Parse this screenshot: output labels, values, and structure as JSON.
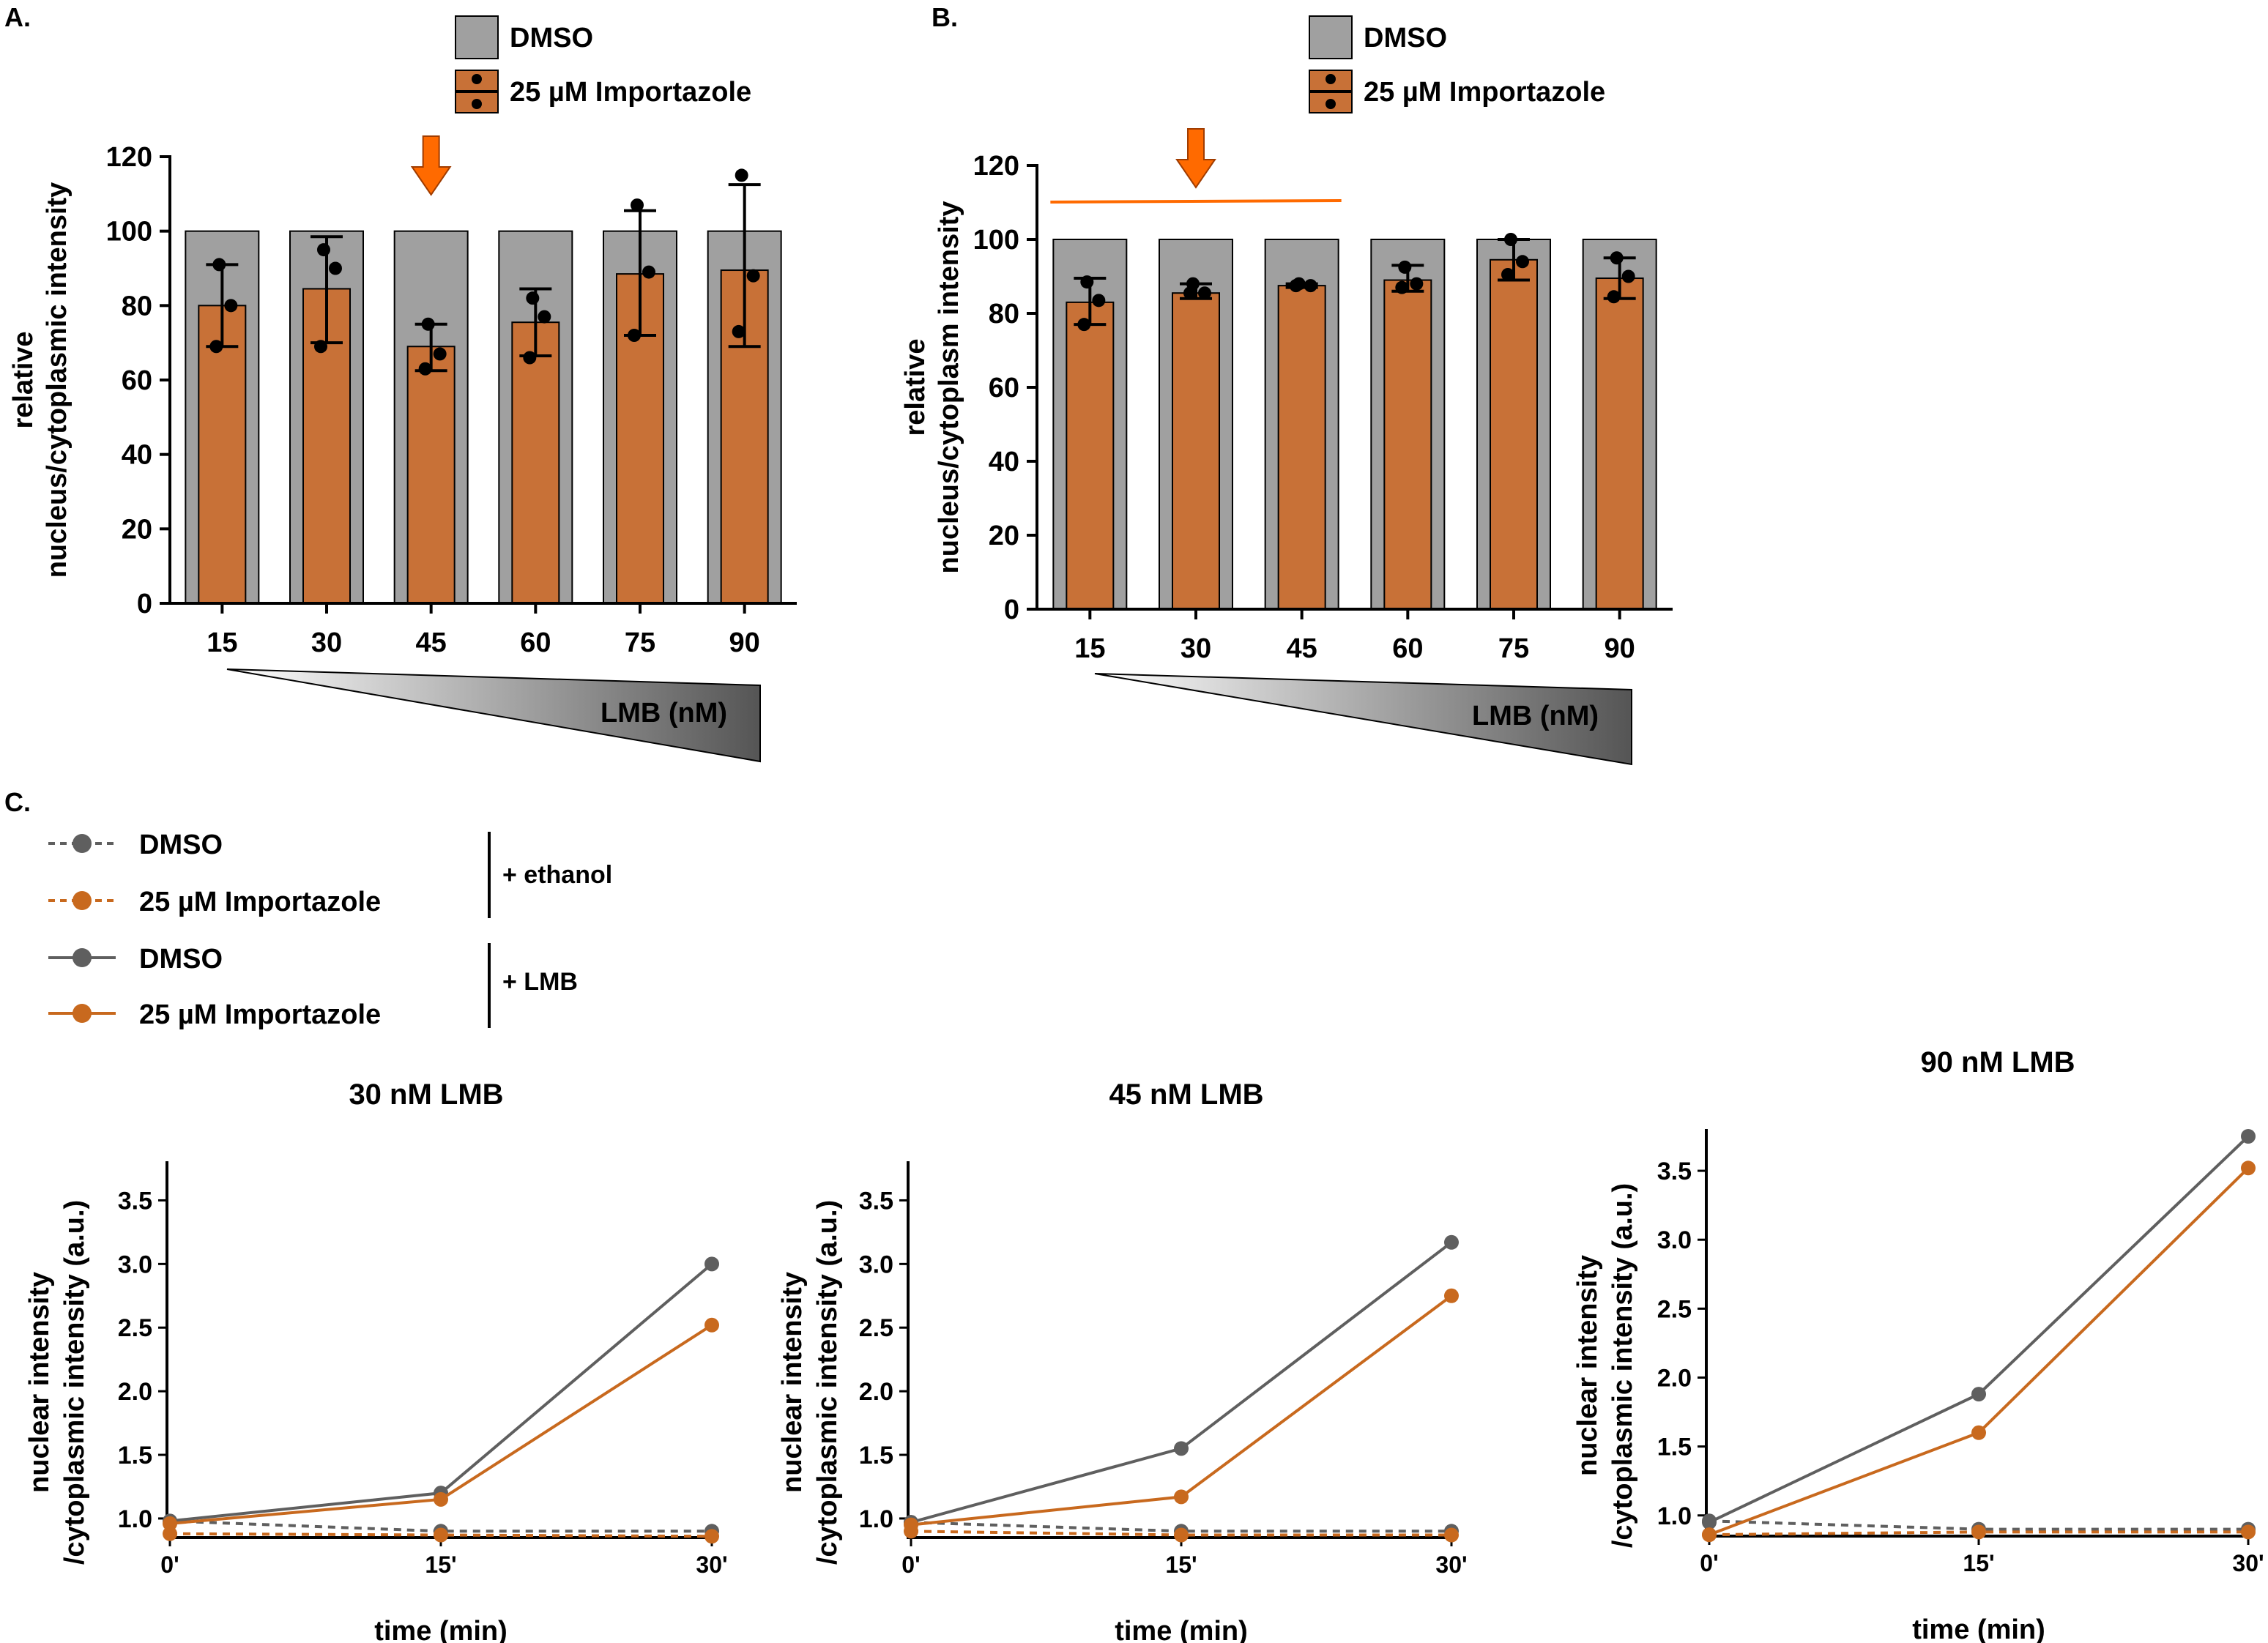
{
  "colors": {
    "dmso_bar": "#a0a0a0",
    "importazole_bar": "#c87137",
    "arrow": "#ff6a00",
    "dmso_line": "#5f5f5f",
    "importazole_line": "#c8691e"
  },
  "panels": {
    "a": {
      "label": "A."
    },
    "b": {
      "label": "B."
    },
    "c": {
      "label": "C."
    }
  },
  "bar_legend": {
    "dmso": "DMSO",
    "importazole": "25 µM Importazole"
  },
  "gradient_label": "LMB (nM)",
  "line_legend": {
    "rows": [
      "DMSO",
      "25 µM Importazole",
      "DMSO",
      "25 µM Importazole"
    ],
    "group_ethanol": "+ ethanol",
    "group_lmb": "+ LMB"
  },
  "chart_data": [
    {
      "panel": "A.",
      "type": "bar",
      "categories": [
        "15",
        "30",
        "45",
        "60",
        "75",
        "90"
      ],
      "ylabel": [
        "relative",
        "nucleus/cytoplasmic intensity"
      ],
      "ylim": [
        0,
        120
      ],
      "yticks": [
        0,
        20,
        40,
        60,
        80,
        100,
        120
      ],
      "xlabel": "LMB (nM)",
      "series": [
        {
          "name": "DMSO",
          "values": [
            100,
            100,
            100,
            100,
            100,
            100
          ]
        },
        {
          "name": "25 µM Importazole",
          "values": [
            80,
            84.5,
            69,
            75.5,
            88.5,
            89.5
          ],
          "error_low": [
            69,
            70,
            62.5,
            66.5,
            72,
            69
          ],
          "error_high": [
            91,
            98.5,
            75,
            84.5,
            105.5,
            112.5
          ],
          "points": [
            [
              91,
              80,
              69
            ],
            [
              95,
              90,
              69
            ],
            [
              75,
              67,
              63
            ],
            [
              82,
              77,
              66
            ],
            [
              107,
              89,
              72
            ],
            [
              115,
              88,
              73
            ]
          ]
        }
      ],
      "arrow_at": "45"
    },
    {
      "panel": "B.",
      "type": "bar",
      "categories": [
        "15",
        "30",
        "45",
        "60",
        "75",
        "90"
      ],
      "ylabel": [
        "relative",
        "nucleus/cytoplasm intensity"
      ],
      "ylim": [
        0,
        120
      ],
      "yticks": [
        0,
        20,
        40,
        60,
        80,
        100,
        120
      ],
      "xlabel": "LMB (nM)",
      "series": [
        {
          "name": "DMSO",
          "values": [
            100,
            100,
            100,
            100,
            100,
            100
          ]
        },
        {
          "name": "25 µM Importazole",
          "values": [
            83,
            85.5,
            87.5,
            89,
            94.5,
            89.5
          ],
          "error_low": [
            77,
            84,
            87,
            86,
            89,
            84
          ],
          "error_high": [
            89.5,
            88,
            88,
            93,
            100,
            95
          ],
          "points": [
            [
              88.5,
              83.5,
              77
            ],
            [
              88,
              85.5,
              85.5
            ],
            [
              88,
              87.5,
              87.5
            ],
            [
              92.5,
              88,
              87
            ],
            [
              100,
              94,
              90.5
            ],
            [
              95,
              90,
              84.5
            ]
          ]
        }
      ],
      "arrow_at": "30",
      "bracket_from": "15",
      "bracket_to": "45"
    },
    {
      "panel": "C.",
      "type": "line",
      "title": "30 nM LMB",
      "x": [
        "0'",
        "15'",
        "30'"
      ],
      "xlabel": "time (min)",
      "ylabel": [
        "nuclear intensity",
        "/cytoplasmic intensity (a.u.)"
      ],
      "yticks": [
        1.0,
        1.5,
        2.0,
        2.5,
        3.0,
        3.5
      ],
      "ylim": [
        0.85,
        3.75
      ],
      "series": [
        {
          "name": "DMSO + LMB",
          "values": [
            0.98,
            1.2,
            3.0
          ]
        },
        {
          "name": "25 µM Importazole + LMB",
          "values": [
            0.96,
            1.15,
            2.52
          ]
        },
        {
          "name": "DMSO + ethanol",
          "values": [
            0.98,
            0.9,
            0.9
          ]
        },
        {
          "name": "25 µM Importazole + ethanol",
          "values": [
            0.88,
            0.87,
            0.86
          ]
        }
      ]
    },
    {
      "panel": "C.",
      "type": "line",
      "title": "45 nM LMB",
      "x": [
        "0'",
        "15'",
        "30'"
      ],
      "xlabel": "time (min)",
      "ylabel": [
        "nuclear intensity",
        "/cytoplasmic intensity (a.u.)"
      ],
      "yticks": [
        1.0,
        1.5,
        2.0,
        2.5,
        3.0,
        3.5
      ],
      "ylim": [
        0.85,
        3.75
      ],
      "series": [
        {
          "name": "DMSO + LMB",
          "values": [
            0.97,
            1.55,
            3.17
          ]
        },
        {
          "name": "25 µM Importazole + LMB",
          "values": [
            0.95,
            1.17,
            2.75
          ]
        },
        {
          "name": "DMSO + ethanol",
          "values": [
            0.97,
            0.9,
            0.9
          ]
        },
        {
          "name": "25 µM Importazole + ethanol",
          "values": [
            0.9,
            0.87,
            0.87
          ]
        }
      ]
    },
    {
      "panel": "C.",
      "type": "line",
      "title": "90 nM LMB",
      "x": [
        "0'",
        "15'",
        "30'"
      ],
      "xlabel": "time (min)",
      "ylabel": [
        "nuclear intensity",
        "/cytoplasmic intensity (a.u.)"
      ],
      "yticks": [
        1.0,
        1.5,
        2.0,
        2.5,
        3.0,
        3.5
      ],
      "ylim": [
        0.85,
        3.75
      ],
      "series": [
        {
          "name": "DMSO + LMB",
          "values": [
            0.95,
            1.88,
            3.75
          ]
        },
        {
          "name": "25 µM Importazole + LMB",
          "values": [
            0.86,
            1.6,
            3.52
          ]
        },
        {
          "name": "DMSO + ethanol",
          "values": [
            0.96,
            0.9,
            0.9
          ]
        },
        {
          "name": "25 µM Importazole + ethanol",
          "values": [
            0.86,
            0.88,
            0.88
          ]
        }
      ]
    }
  ]
}
